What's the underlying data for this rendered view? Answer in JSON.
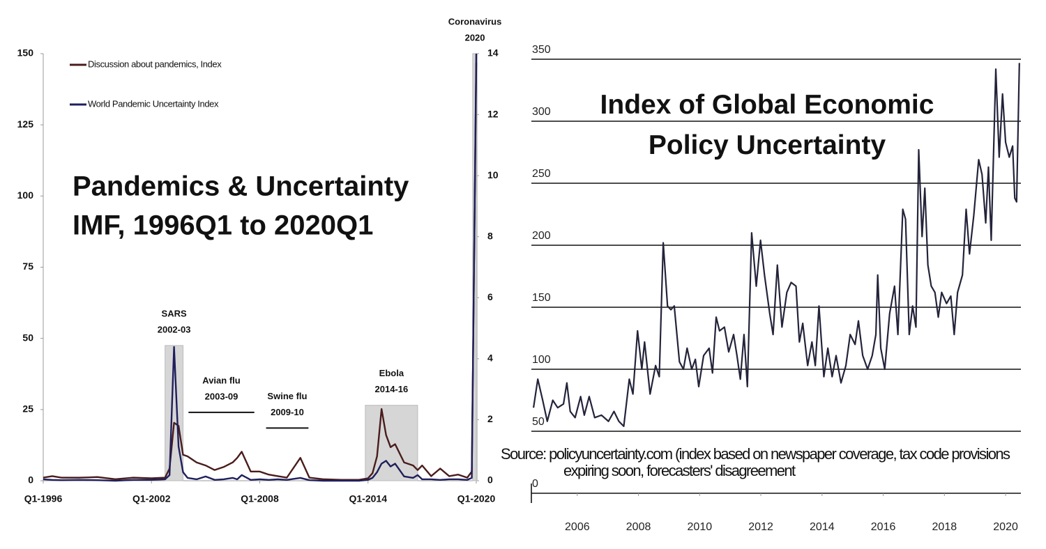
{
  "chart_data": [
    {
      "type": "line",
      "title": "Pandemics & Uncertainty",
      "subtitle": "IMF, 1996Q1 to 2020Q1",
      "x": [
        1996,
        1996.5,
        1997,
        1998,
        1999,
        2000,
        2001,
        2002,
        2002.75,
        2003,
        2003.25,
        2003.5,
        2003.75,
        2004,
        2004.5,
        2005,
        2005.5,
        2006,
        2006.5,
        2006.75,
        2007,
        2007.5,
        2008,
        2008.5,
        2009,
        2009.5,
        2010.25,
        2010.75,
        2011.5,
        2012.5,
        2013.5,
        2014,
        2014.25,
        2014.5,
        2014.75,
        2015,
        2015.25,
        2015.5,
        2016,
        2016.5,
        2016.75,
        2017,
        2017.5,
        2018,
        2018.5,
        2019,
        2019.5,
        2019.75,
        2020
      ],
      "xlim": [
        1996,
        2020
      ],
      "xticks": [
        {
          "value": 1996,
          "label": "Q1-1996"
        },
        {
          "value": 2002,
          "label": "Q1-2002"
        },
        {
          "value": 2008,
          "label": "Q1-2008"
        },
        {
          "value": 2014,
          "label": "Q1-2014"
        },
        {
          "value": 2020,
          "label": "Q1-2020"
        }
      ],
      "ylim": [
        0,
        150
      ],
      "yticks": [
        0,
        25,
        50,
        75,
        100,
        125,
        150
      ],
      "y2lim": [
        0,
        14
      ],
      "y2ticks": [
        0,
        2,
        4,
        6,
        8,
        10,
        12,
        14
      ],
      "grid": false,
      "legend": "top-left",
      "series": [
        {
          "name": "Discussion about pandemics, Index",
          "color": "#4a1c1c",
          "axis": "y2",
          "values": [
            0.1,
            0.15,
            0.1,
            0.1,
            0.12,
            0.05,
            0.1,
            0.08,
            0.1,
            0.4,
            1.9,
            1.8,
            0.85,
            0.8,
            0.6,
            0.5,
            0.35,
            0.45,
            0.6,
            0.75,
            0.95,
            0.3,
            0.3,
            0.2,
            0.15,
            0.1,
            0.75,
            0.1,
            0.05,
            0.03,
            0.03,
            0.08,
            0.25,
            0.8,
            2.35,
            1.5,
            1.1,
            1.2,
            0.6,
            0.5,
            0.35,
            0.5,
            0.15,
            0.4,
            0.15,
            0.2,
            0.1,
            0.3,
            13.7
          ]
        },
        {
          "name": "World Pandemic Uncertainty Index",
          "color": "#1f1f5c",
          "values": [
            0.5,
            0.3,
            0.2,
            0.3,
            0.2,
            0,
            0.3,
            0.3,
            0.5,
            2,
            47,
            12,
            3,
            1,
            0.5,
            1.5,
            0.3,
            0.5,
            1,
            0.5,
            2,
            0.3,
            0.5,
            0.3,
            0.5,
            0.3,
            1,
            0.2,
            0,
            0,
            0,
            0.3,
            1,
            3,
            6,
            7,
            5,
            6,
            1.5,
            1,
            2,
            0.5,
            0.5,
            0.3,
            0.5,
            0.5,
            0.3,
            1,
            150
          ]
        }
      ],
      "annotations": [
        {
          "label": "SARS",
          "period": "2002-03",
          "x0": 2002.75,
          "x1": 2003.75,
          "y": 47.5,
          "style": "shade"
        },
        {
          "label": "Avian flu",
          "period": "2003-09",
          "x0": 2004.05,
          "x1": 2007.7,
          "y": 24,
          "style": "bar"
        },
        {
          "label": "Swine flu",
          "period": "2009-10",
          "x0": 2008.35,
          "x1": 2010.7,
          "y": 18.5,
          "style": "bar"
        },
        {
          "label": "Ebola",
          "period": "2014-16",
          "x0": 2013.85,
          "x1": 2016.75,
          "y": 26.5,
          "style": "shade"
        },
        {
          "label": "Coronavirus",
          "period": "2020",
          "x0": 2019.8,
          "x1": 2020.05,
          "y": 150,
          "style": "shade"
        }
      ]
    },
    {
      "type": "line",
      "title": "Index of Global Economic Policy Uncertainty",
      "source": "Source: policyuncertainty.com (index based on newspaper coverage, tax code provisions expiring soon, forecasters' disagreement",
      "color": "#23233a",
      "grid": true,
      "xlim": [
        2004.5,
        2020.5
      ],
      "xticks": [
        2006,
        2008,
        2010,
        2012,
        2014,
        2016,
        2018,
        2020
      ],
      "ylim": [
        0,
        350
      ],
      "yticks": [
        0,
        50,
        100,
        150,
        200,
        250,
        300,
        350
      ],
      "x": [
        2004.57,
        2004.71,
        2004.87,
        2005.02,
        2005.2,
        2005.36,
        2005.55,
        2005.66,
        2005.77,
        2005.93,
        2006.11,
        2006.23,
        2006.39,
        2006.57,
        2006.79,
        2007.02,
        2007.2,
        2007.36,
        2007.52,
        2007.7,
        2007.82,
        2007.97,
        2008.11,
        2008.2,
        2008.38,
        2008.56,
        2008.68,
        2008.81,
        2008.95,
        2009.06,
        2009.17,
        2009.34,
        2009.47,
        2009.59,
        2009.74,
        2009.86,
        2009.97,
        2010.13,
        2010.31,
        2010.42,
        2010.54,
        2010.65,
        2010.81,
        2010.95,
        2011.11,
        2011.22,
        2011.33,
        2011.45,
        2011.56,
        2011.7,
        2011.85,
        2011.99,
        2012.12,
        2012.29,
        2012.4,
        2012.54,
        2012.69,
        2012.85,
        2012.99,
        2013.15,
        2013.26,
        2013.37,
        2013.53,
        2013.67,
        2013.78,
        2013.9,
        2014.06,
        2014.19,
        2014.33,
        2014.46,
        2014.62,
        2014.78,
        2014.92,
        2015.08,
        2015.19,
        2015.33,
        2015.49,
        2015.64,
        2015.76,
        2015.82,
        2015.92,
        2016.05,
        2016.21,
        2016.37,
        2016.48,
        2016.64,
        2016.73,
        2016.85,
        2016.96,
        2017.07,
        2017.16,
        2017.27,
        2017.36,
        2017.46,
        2017.57,
        2017.69,
        2017.8,
        2017.91,
        2018.07,
        2018.21,
        2018.32,
        2018.43,
        2018.59,
        2018.71,
        2018.82,
        2018.96,
        2019.12,
        2019.23,
        2019.35,
        2019.44,
        2019.53,
        2019.68,
        2019.79,
        2019.9,
        2020,
        2020.12,
        2020.23,
        2020.3,
        2020.36,
        2020.45
      ],
      "values": [
        69,
        92,
        75,
        58,
        75,
        69,
        72,
        89,
        66,
        61,
        78,
        63,
        78,
        61,
        63,
        58,
        66,
        58,
        54,
        92,
        80,
        131,
        100,
        122,
        80,
        103,
        94,
        202,
        151,
        148,
        151,
        106,
        100,
        117,
        100,
        108,
        86,
        111,
        117,
        97,
        142,
        131,
        134,
        114,
        128,
        111,
        92,
        128,
        86,
        210,
        167,
        204,
        176,
        145,
        128,
        184,
        134,
        162,
        170,
        167,
        122,
        137,
        103,
        122,
        103,
        151,
        94,
        117,
        94,
        111,
        89,
        103,
        128,
        120,
        139,
        111,
        100,
        111,
        128,
        176,
        117,
        100,
        145,
        167,
        128,
        229,
        221,
        128,
        151,
        134,
        277,
        207,
        246,
        184,
        167,
        162,
        142,
        162,
        153,
        159,
        128,
        162,
        176,
        229,
        193,
        224,
        269,
        257,
        218,
        263,
        204,
        342,
        271,
        322,
        283,
        271,
        280,
        238,
        235,
        347
      ]
    }
  ]
}
